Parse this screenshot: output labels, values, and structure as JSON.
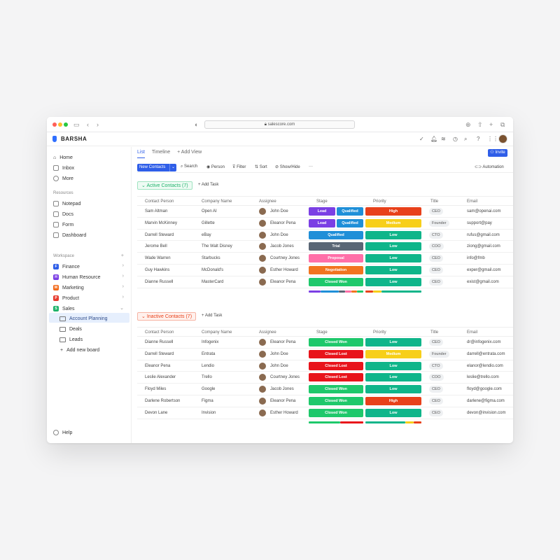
{
  "browser": {
    "url": "salescore.com"
  },
  "app": {
    "brand": "BARSHA"
  },
  "sidebar": {
    "nav": [
      {
        "label": "Home"
      },
      {
        "label": "Inbox"
      },
      {
        "label": "More"
      }
    ],
    "resources_heading": "Resources",
    "resources": [
      {
        "label": "Notepad"
      },
      {
        "label": "Docs"
      },
      {
        "label": "Form"
      },
      {
        "label": "Dashboard"
      }
    ],
    "workspace_heading": "Workspace",
    "workspaces": [
      {
        "letter": "F",
        "label": "Finance",
        "color": "#2f5ee8"
      },
      {
        "letter": "H",
        "label": "Human Resource",
        "color": "#7b3fe4"
      },
      {
        "letter": "M",
        "label": "Marketing",
        "color": "#f26b1d"
      },
      {
        "letter": "P",
        "label": "Product",
        "color": "#e63b2e"
      },
      {
        "letter": "S",
        "label": "Sales",
        "color": "#1fb36b"
      }
    ],
    "boards": [
      {
        "label": "Account Planning"
      },
      {
        "label": "Deals"
      },
      {
        "label": "Leads"
      }
    ],
    "add_board": "Add new board",
    "help": "Help"
  },
  "tabs": [
    {
      "label": "List"
    },
    {
      "label": "Timeline"
    },
    {
      "label": "+ Add View"
    }
  ],
  "invite": "Invite",
  "toolbar": {
    "new": "New Contacts",
    "search": "Search",
    "person": "Person",
    "filter": "Filter",
    "sort": "Sort",
    "show_hide": "Show/Hide",
    "more": "···",
    "automation": "Automation"
  },
  "columns": [
    "Contact Person",
    "Company Name",
    "Assignee",
    "Stage",
    "Priority",
    "Title",
    "Email"
  ],
  "colors": {
    "lead": "#7b3fe4",
    "qualified": "#1f8fd8",
    "trial": "#5a6675",
    "proposal": "#ff6fa8",
    "negotiation": "#f2741f",
    "won": "#1ec86b",
    "lost": "#e8141b",
    "high": "#e8401a",
    "medium": "#f7cf1a",
    "low": "#0fb58a"
  },
  "active": {
    "label": "Active Contacts (7)",
    "add_task": "+ Add Task",
    "rows": [
      {
        "contact": "Sam Altman",
        "company": "Open AI",
        "assignee": "John Doe",
        "stage": [
          "Lead",
          "Qualified"
        ],
        "priority": "High",
        "title": "CEO",
        "email": "sam@openai.com"
      },
      {
        "contact": "Marvin McKinney",
        "company": "Gillette",
        "assignee": "Eleanor Pena",
        "stage": [
          "Lead",
          "Qualified"
        ],
        "priority": "Medium",
        "title": "Founder",
        "email": "support@pay"
      },
      {
        "contact": "Darrell Steward",
        "company": "eBay",
        "assignee": "John Doe",
        "stage": [
          "Qualified"
        ],
        "priority": "Low",
        "title": "CTO",
        "email": "rufus@gmail.com"
      },
      {
        "contact": "Jerome Bell",
        "company": "The Walt Disney",
        "assignee": "Jacob Jones",
        "stage": [
          "Trial"
        ],
        "priority": "Low",
        "title": "COO",
        "email": "ziong@gmail.com"
      },
      {
        "contact": "Wade Warren",
        "company": "Starbucks",
        "assignee": "Courtney Jones",
        "stage": [
          "Proposal"
        ],
        "priority": "Low",
        "title": "CEO",
        "email": "info@fmb"
      },
      {
        "contact": "Guy Hawkins",
        "company": "McDonald's",
        "assignee": "Esther Howard",
        "stage": [
          "Negotiation"
        ],
        "priority": "Low",
        "title": "CEO",
        "email": "exper@gmail.com"
      },
      {
        "contact": "Dianne Russell",
        "company": "MasterCard",
        "assignee": "Eleanor Pena",
        "stage": [
          "Closed Won"
        ],
        "priority": "Low",
        "title": "CEO",
        "email": "exist@gmail.com"
      }
    ]
  },
  "inactive": {
    "label": "Inactive Contacts (7)",
    "add_task": "+ Add Task",
    "rows": [
      {
        "contact": "Dianne Russell",
        "company": "Infogenix",
        "assignee": "Eleanor Pena",
        "stage": [
          "Closed Won"
        ],
        "priority": "Low",
        "title": "CEO",
        "email": "dr@infogenix.com"
      },
      {
        "contact": "Darrell Steward",
        "company": "Entrata",
        "assignee": "John Doe",
        "stage": [
          "Closed Lost"
        ],
        "priority": "Medium",
        "title": "Founder",
        "email": "darrell@entrata.com"
      },
      {
        "contact": "Eleanor Pena",
        "company": "Lendio",
        "assignee": "John Doe",
        "stage": [
          "Closed Lost"
        ],
        "priority": "Low",
        "title": "CTO",
        "email": "elanor@lendio.com"
      },
      {
        "contact": "Leslie Alexander",
        "company": "Trello",
        "assignee": "Courtney Jones",
        "stage": [
          "Closed Lost"
        ],
        "priority": "Low",
        "title": "COO",
        "email": "leslie@trello.com"
      },
      {
        "contact": "Floyd Miles",
        "company": "Google",
        "assignee": "Jacob Jones",
        "stage": [
          "Closed Won"
        ],
        "priority": "Low",
        "title": "CEO",
        "email": "floyd@google.com"
      },
      {
        "contact": "Darlene Robertson",
        "company": "Figma",
        "assignee": "Eleanor Pena",
        "stage": [
          "Closed Won"
        ],
        "priority": "High",
        "title": "CEO",
        "email": "darlene@figma.com"
      },
      {
        "contact": "Devon Lane",
        "company": "Invision",
        "assignee": "Esther Howard",
        "stage": [
          "Closed Won"
        ],
        "priority": "Low",
        "title": "CEO",
        "email": "devon@invision.com"
      }
    ]
  }
}
